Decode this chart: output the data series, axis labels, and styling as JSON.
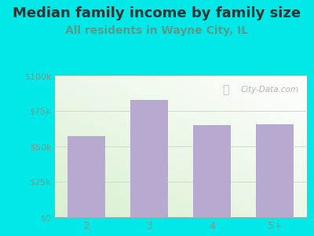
{
  "title": "Median family income by family size",
  "subtitle": "All residents in Wayne City, IL",
  "categories": [
    "2",
    "3",
    "4",
    "5+"
  ],
  "values": [
    57000,
    83000,
    65000,
    65500
  ],
  "bar_color": "#b8a9d0",
  "title_color": "#333333",
  "subtitle_color": "#5b9a8a",
  "tick_label_color": "#7a9a8a",
  "background_color": "#00e8e8",
  "ylim": [
    0,
    100000
  ],
  "yticks": [
    0,
    25000,
    50000,
    75000,
    100000
  ],
  "ytick_labels": [
    "$0",
    "$25k",
    "$50k",
    "$75k",
    "$100k"
  ],
  "watermark": "City-Data.com",
  "title_fontsize": 13,
  "subtitle_fontsize": 10
}
